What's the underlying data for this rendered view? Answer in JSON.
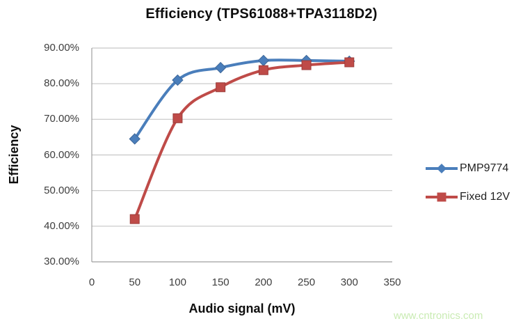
{
  "figure": {
    "title": "Efficiency (TPS61088+TPA3118D2)",
    "watermark": "www.cntronics.com"
  },
  "colors": {
    "series1": "#4a7ebb",
    "series2": "#bf4b48",
    "gridline": "#c6c6c6",
    "axis": "#9f9f9f",
    "tick_text": "#3d3d3d",
    "watermark_text": "#c9ebb3"
  },
  "chart_data": {
    "type": "line",
    "title": "Efficiency (TPS61088+TPA3118D2)",
    "xlabel": "Audio signal (mV)",
    "ylabel": "Efficiency",
    "x": [
      50,
      100,
      150,
      200,
      250,
      300
    ],
    "series": [
      {
        "name": "PMP9774",
        "marker": "diamond",
        "color": "#4a7ebb",
        "values": [
          64.5,
          81.0,
          84.5,
          86.5,
          86.5,
          86.3
        ]
      },
      {
        "name": "Fixed 12V",
        "marker": "square",
        "color": "#bf4b48",
        "values": [
          42.0,
          70.3,
          79.0,
          83.8,
          85.2,
          86.0
        ]
      }
    ],
    "xlim": [
      0,
      350
    ],
    "ylim": [
      30,
      90
    ],
    "xticks": [
      0,
      50,
      100,
      150,
      200,
      250,
      300,
      350
    ],
    "ytick_values": [
      30,
      40,
      50,
      60,
      70,
      80,
      90
    ],
    "ytick_labels": [
      "30.00%",
      "40.00%",
      "50.00%",
      "60.00%",
      "70.00%",
      "80.00%",
      "90.00%"
    ],
    "grid": "horizontal",
    "smoothed": true,
    "legend_position": "right"
  }
}
